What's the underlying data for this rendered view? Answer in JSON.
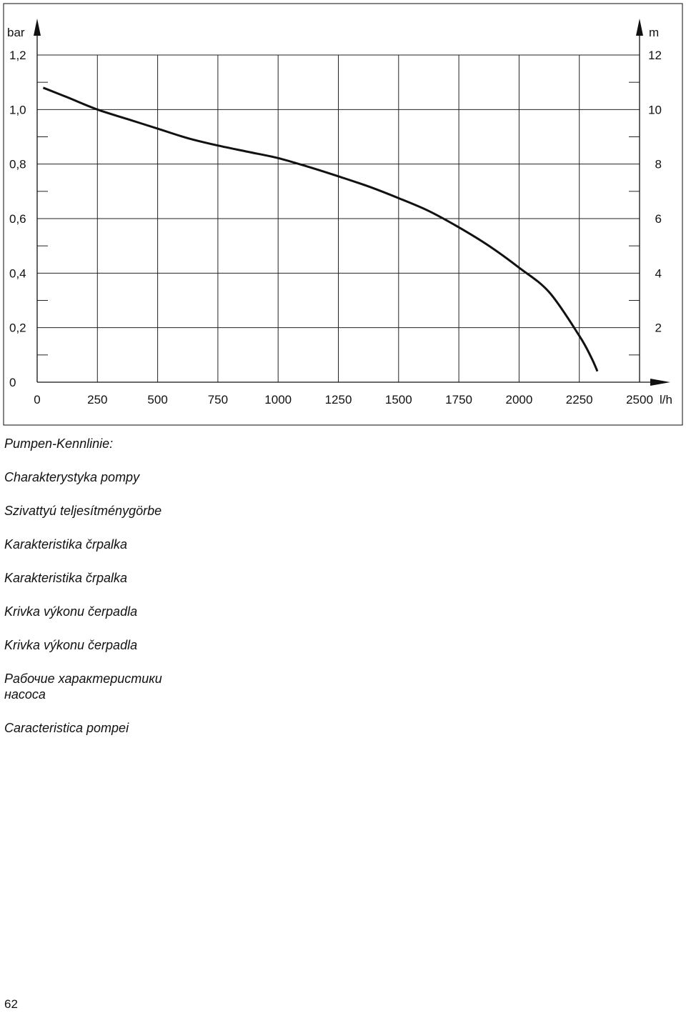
{
  "chart_data": {
    "type": "line",
    "title": "",
    "xlabel": "l/h",
    "ylabel": "bar",
    "y2label": "m",
    "xlim": [
      0,
      2500
    ],
    "ylim": [
      0,
      1.2
    ],
    "y2lim": [
      0,
      12
    ],
    "grid": true,
    "x_tick_labels": [
      "0",
      "250",
      "500",
      "750",
      "1000",
      "1250",
      "1500",
      "1750",
      "2000",
      "2250",
      "2500"
    ],
    "y_tick_labels": [
      "0",
      "0,2",
      "0,4",
      "0,6",
      "0,8",
      "1,0",
      "1,2"
    ],
    "y2_tick_labels": [
      "2",
      "4",
      "6",
      "8",
      "10",
      "12"
    ],
    "series": [
      {
        "x": [
          25,
          125,
          250,
          375,
          500,
          625,
          750,
          875,
          1000,
          1125,
          1250,
          1375,
          1500,
          1625,
          1750,
          1875,
          2000,
          2125,
          2250,
          2300,
          2325
        ],
        "y": [
          1.08,
          1.045,
          1.0,
          0.965,
          0.93,
          0.895,
          0.868,
          0.845,
          0.822,
          0.79,
          0.755,
          0.718,
          0.675,
          0.628,
          0.568,
          0.5,
          0.42,
          0.33,
          0.17,
          0.09,
          0.04
        ]
      }
    ]
  },
  "captions": [
    "Pumpen-Kennlinie:",
    "Charakterystyka pompy",
    "Szivattyú teljesítménygörbe",
    "Karakteristika črpalka",
    "Karakteristika črpalka",
    "Krivka výkonu čerpadla",
    "Krivka výkonu čerpadla",
    "Рабочие характеристики\nнасоса",
    "Caracteristica pompei"
  ],
  "page_number": "62"
}
